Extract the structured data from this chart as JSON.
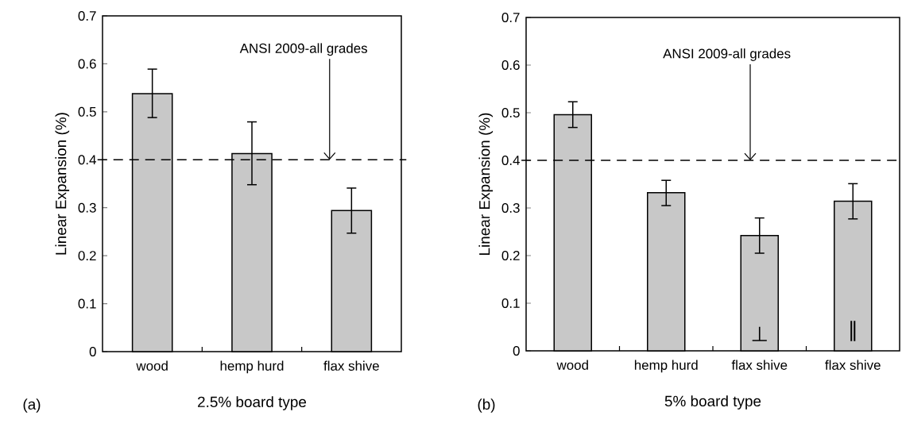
{
  "chart_data": [
    {
      "type": "bar",
      "categories": [
        "wood",
        "hemp hurd",
        "flax shive"
      ],
      "xlabel": "2.5% board type",
      "ylabel": "Linear Expansion (%)",
      "values": [
        0.538,
        0.413,
        0.294
      ],
      "errors": [
        [
          0.488,
          0.589
        ],
        [
          0.348,
          0.479
        ],
        [
          0.247,
          0.341
        ]
      ],
      "color": "#c8c8c8",
      "ylim": [
        0,
        0.7
      ],
      "yticks": [
        0,
        0.1,
        0.2,
        0.3,
        0.4,
        0.5,
        0.6,
        0.7
      ],
      "ref_lines": [
        {
          "axis": "y",
          "value": 0.4,
          "label": "ANSI 2009-all grades",
          "line_style": "dashed",
          "color": "#000000"
        }
      ],
      "annotations": [
        "(a)"
      ]
    },
    {
      "type": "bar",
      "categories": [
        "wood",
        "hemp hurd",
        "flax shive",
        "flax shive"
      ],
      "xlabel": "5% board type",
      "ylabel": "Linear Expansion (%)",
      "values": [
        0.496,
        0.332,
        0.242,
        0.314
      ],
      "errors": [
        [
          0.469,
          0.523
        ],
        [
          0.305,
          0.358
        ],
        [
          0.205,
          0.279
        ],
        [
          0.277,
          0.351
        ]
      ],
      "value_labels": [
        null,
        null,
        "⊥",
        "∥"
      ],
      "color": "#c8c8c8",
      "ylim": [
        0,
        0.7
      ],
      "yticks": [
        0,
        0.1,
        0.2,
        0.3,
        0.4,
        0.5,
        0.6,
        0.7
      ],
      "ref_lines": [
        {
          "axis": "y",
          "value": 0.4,
          "label": "ANSI 2009-all grades",
          "line_style": "dashed",
          "color": "#000000"
        }
      ],
      "annotations": [
        "(b)"
      ]
    }
  ]
}
